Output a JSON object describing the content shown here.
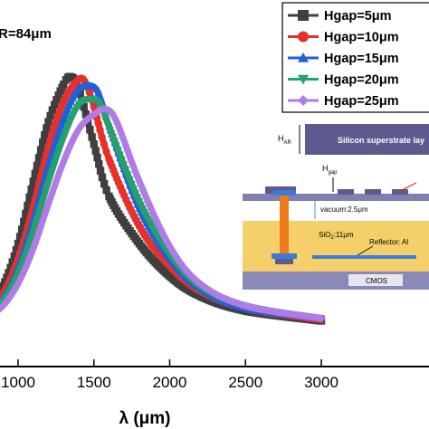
{
  "chart_data": {
    "type": "line",
    "title": "",
    "xlabel": "λ (μm)",
    "ylabel": "",
    "xlim": [
      800,
      3300
    ],
    "ylim": [
      0,
      1
    ],
    "grid": false,
    "x_ticks": [
      "1000",
      "1500",
      "2000",
      "2500",
      "3000"
    ],
    "annotation_text": "R=84μm",
    "legend_position": "top-right",
    "series": [
      {
        "name": "Hgap=5μm",
        "color": "#3f3f3f",
        "marker": "square",
        "x": [
          800,
          900,
          1000,
          1100,
          1200,
          1300,
          1350,
          1400,
          1500,
          1600,
          1800,
          2000,
          2200,
          2500,
          3000
        ],
        "y": [
          0.09,
          0.16,
          0.33,
          0.58,
          0.82,
          0.97,
          1.0,
          0.95,
          0.73,
          0.52,
          0.33,
          0.2,
          0.12,
          0.06,
          0.02
        ]
      },
      {
        "name": "Hgap=10μm",
        "color": "#e8302a",
        "marker": "circle",
        "x": [
          800,
          900,
          1000,
          1100,
          1200,
          1300,
          1400,
          1450,
          1500,
          1600,
          1800,
          2000,
          2200,
          2500,
          3000
        ],
        "y": [
          0.07,
          0.13,
          0.27,
          0.48,
          0.72,
          0.9,
          0.99,
          0.97,
          0.88,
          0.67,
          0.4,
          0.24,
          0.14,
          0.07,
          0.025
        ]
      },
      {
        "name": "Hgap=15μm",
        "color": "#2060d8",
        "marker": "triangle-up",
        "x": [
          800,
          900,
          1000,
          1100,
          1200,
          1300,
          1400,
          1500,
          1550,
          1600,
          1800,
          2000,
          2200,
          2500,
          3000
        ],
        "y": [
          0.06,
          0.11,
          0.23,
          0.42,
          0.64,
          0.83,
          0.95,
          0.96,
          0.9,
          0.8,
          0.47,
          0.27,
          0.15,
          0.07,
          0.03
        ]
      },
      {
        "name": "Hgap=20μm",
        "color": "#25a070",
        "marker": "triangle-down",
        "x": [
          800,
          900,
          1000,
          1100,
          1200,
          1300,
          1400,
          1500,
          1550,
          1600,
          1800,
          2000,
          2200,
          2500,
          3000
        ],
        "y": [
          0.05,
          0.1,
          0.21,
          0.38,
          0.58,
          0.76,
          0.89,
          0.91,
          0.88,
          0.8,
          0.5,
          0.29,
          0.16,
          0.08,
          0.03
        ]
      },
      {
        "name": "Hgap=25μm",
        "color": "#b27ae6",
        "marker": "diamond",
        "x": [
          800,
          900,
          1000,
          1100,
          1200,
          1300,
          1400,
          1500,
          1580,
          1650,
          1800,
          2000,
          2200,
          2500,
          3000
        ],
        "y": [
          0.04,
          0.08,
          0.17,
          0.31,
          0.49,
          0.66,
          0.79,
          0.85,
          0.87,
          0.82,
          0.58,
          0.32,
          0.17,
          0.08,
          0.03
        ]
      }
    ]
  },
  "inset": {
    "h_ar_label": "H",
    "h_ar_sub": "AR",
    "h_gap_label": "H",
    "h_gap_sub": "gap",
    "superstrate_label": "Silicon superstrate lay",
    "vacuum_label": "vacuum:2.5μm",
    "sio2_label": "SiO",
    "sio2_sub": "2",
    "sio2_rest": ":11μm",
    "reflector_label": "Reflector: Al",
    "cmos_label": "CMOS"
  }
}
